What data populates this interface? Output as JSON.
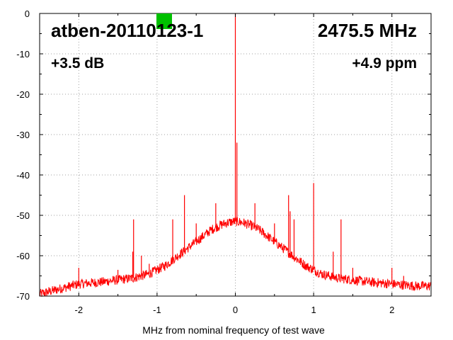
{
  "chart_data": {
    "type": "line",
    "xlabel": "MHz from nominal frequency of test wave",
    "ylabel": "",
    "xlim": [
      -2.5,
      2.5
    ],
    "ylim": [
      -70,
      0
    ],
    "x_ticks": [
      -2,
      -1,
      0,
      1,
      2
    ],
    "y_ticks": [
      0,
      -10,
      -20,
      -30,
      -40,
      -50,
      -60,
      -70
    ],
    "grid": true,
    "annotations": {
      "device": "atben-20110123-1",
      "frequency": "2475.5 MHz",
      "gain": "+3.5 dB",
      "offset": "+4.9 ppm"
    },
    "status_color": "#00c000",
    "series": [
      {
        "color": "#ff0000",
        "noise_floor": {
          "x": [
            -2.5,
            -2.3,
            -2.0,
            -1.7,
            -1.5,
            -1.3,
            -1.1,
            -1.0,
            -0.9,
            -0.8,
            -0.7,
            -0.6,
            -0.5,
            -0.4,
            -0.3,
            -0.2,
            -0.1,
            0.0,
            0.1,
            0.2,
            0.3,
            0.4,
            0.5,
            0.6,
            0.7,
            0.8,
            0.9,
            1.0,
            1.1,
            1.3,
            1.5,
            1.7,
            2.0,
            2.3,
            2.5
          ],
          "y": [
            -69.5,
            -68.5,
            -67.0,
            -66.5,
            -66.0,
            -65.5,
            -64.5,
            -63.5,
            -62.5,
            -61.0,
            -59.5,
            -58.0,
            -56.5,
            -55.0,
            -53.5,
            -52.5,
            -51.8,
            -51.5,
            -51.8,
            -52.5,
            -53.5,
            -55.0,
            -56.5,
            -58.0,
            -59.5,
            -61.0,
            -62.5,
            -63.5,
            -64.5,
            -65.5,
            -66.0,
            -66.5,
            -67.0,
            -67.5,
            -67.5
          ]
        },
        "spikes": [
          {
            "x": -2.0,
            "y": -63
          },
          {
            "x": -1.5,
            "y": -63.5
          },
          {
            "x": -1.3,
            "y": -51
          },
          {
            "x": -1.31,
            "y": -59
          },
          {
            "x": -1.2,
            "y": -60
          },
          {
            "x": -1.1,
            "y": -62
          },
          {
            "x": -1.05,
            "y": -63
          },
          {
            "x": -0.8,
            "y": -51
          },
          {
            "x": -0.65,
            "y": -45
          },
          {
            "x": -0.5,
            "y": -52
          },
          {
            "x": -0.25,
            "y": -47
          },
          {
            "x": 0.0,
            "y": 0
          },
          {
            "x": 0.02,
            "y": -32
          },
          {
            "x": 0.25,
            "y": -47
          },
          {
            "x": 0.5,
            "y": -52
          },
          {
            "x": 0.68,
            "y": -45
          },
          {
            "x": 0.7,
            "y": -49
          },
          {
            "x": 0.75,
            "y": -51
          },
          {
            "x": 1.0,
            "y": -42
          },
          {
            "x": 1.25,
            "y": -59
          },
          {
            "x": 1.35,
            "y": -51
          },
          {
            "x": 1.5,
            "y": -63
          },
          {
            "x": 2.0,
            "y": -63
          },
          {
            "x": 2.15,
            "y": -65
          }
        ]
      }
    ]
  }
}
